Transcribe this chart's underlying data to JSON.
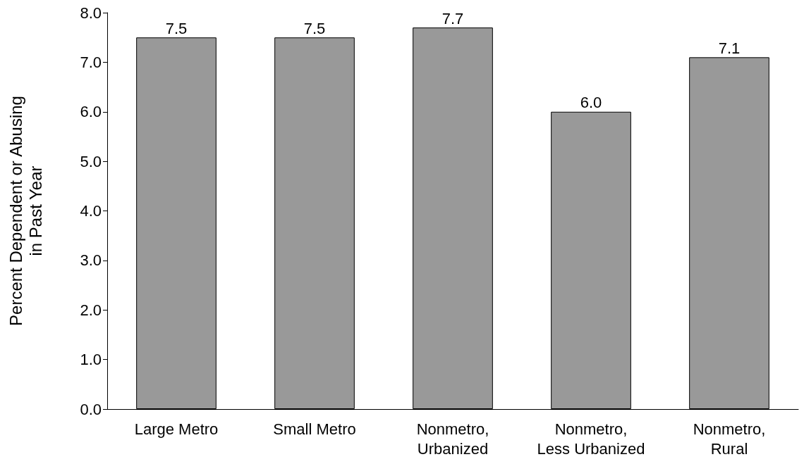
{
  "chart_data": {
    "type": "bar",
    "ylabel": "Percent Dependent or Abusing\nin Past Year",
    "categories": [
      "Large Metro",
      "Small Metro",
      "Nonmetro,\nUrbanized",
      "Nonmetro,\nLess Urbanized",
      "Nonmetro,\nRural"
    ],
    "values": [
      7.5,
      7.5,
      7.7,
      6.0,
      7.1
    ],
    "value_labels": [
      "7.5",
      "7.5",
      "7.7",
      "6.0",
      "7.1"
    ],
    "color": "#999999",
    "ylim": [
      0,
      8
    ],
    "yticks": [
      {
        "value": 0,
        "label": "0.0"
      },
      {
        "value": 1,
        "label": "1.0"
      },
      {
        "value": 2,
        "label": "2.0"
      },
      {
        "value": 3,
        "label": "3.0"
      },
      {
        "value": 4,
        "label": "4.0"
      },
      {
        "value": 5,
        "label": "5.0"
      },
      {
        "value": 6,
        "label": "6.0"
      },
      {
        "value": 7,
        "label": "7.0"
      },
      {
        "value": 8,
        "label": "8.0"
      }
    ],
    "grid": false
  }
}
